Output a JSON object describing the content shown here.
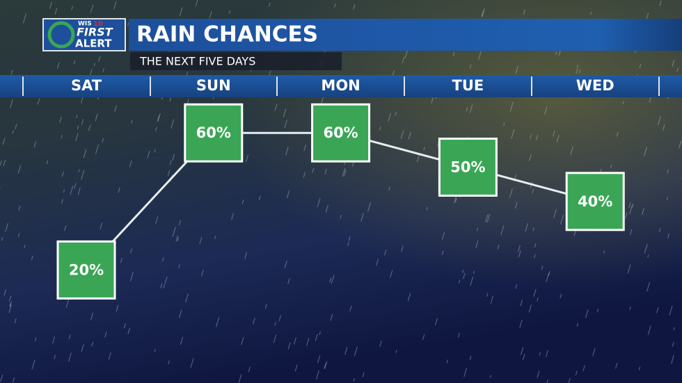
{
  "logo": {
    "station": "WIS",
    "channel": "10",
    "brand": "FIRST",
    "sub": "ALERT"
  },
  "chart_data": {
    "type": "line",
    "title": "RAIN CHANCES",
    "subtitle": "THE NEXT FIVE DAYS",
    "categories": [
      "SAT",
      "SUN",
      "MON",
      "TUE",
      "WED"
    ],
    "values": [
      20,
      60,
      60,
      50,
      40
    ],
    "value_labels": [
      "20%",
      "60%",
      "60%",
      "50%",
      "40%"
    ],
    "color": "#3aa655"
  }
}
